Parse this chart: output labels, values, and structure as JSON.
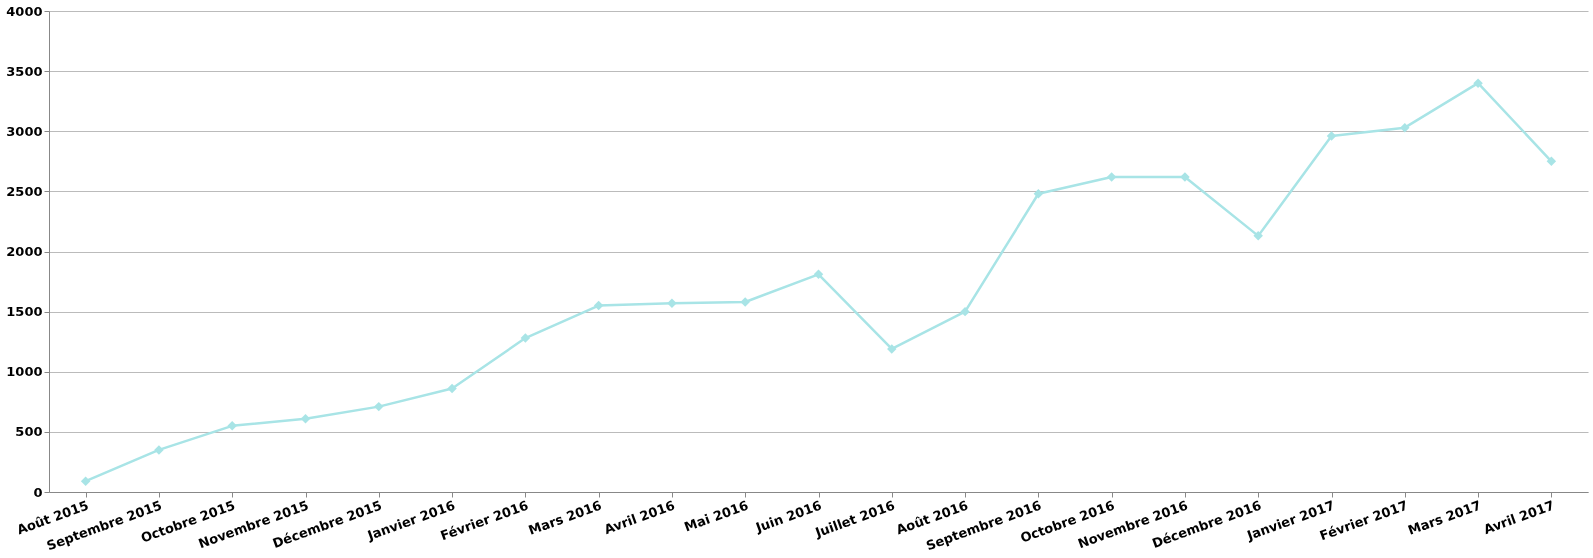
{
  "chart_data": {
    "type": "line",
    "categories": [
      "Août 2015",
      "Septembre 2015",
      "Octobre 2015",
      "Novembre 2015",
      "Décembre 2015",
      "Janvier 2016",
      "Février 2016",
      "Mars 2016",
      "Avril 2016",
      "Mai 2016",
      "Juin 2016",
      "Juillet 2016",
      "Août 2016",
      "Septembre 2016",
      "Octobre 2016",
      "Novembre 2016",
      "Décembre 2016",
      "Janvier 2017",
      "Février 2017",
      "Mars 2017",
      "Avril 2017"
    ],
    "series": [
      {
        "color": "#a8e4e6",
        "values": [
          90,
          350,
          550,
          610,
          710,
          860,
          1280,
          1550,
          1570,
          1580,
          1810,
          1190,
          1500,
          2480,
          2620,
          2620,
          2130,
          2960,
          3030,
          3400,
          2750
        ]
      }
    ],
    "ylim": [
      0,
      4000
    ],
    "yticks": [
      0,
      500,
      1000,
      1500,
      2000,
      2500,
      3000,
      3500,
      4000
    ],
    "grid": "y",
    "marker": "diamond",
    "line_style": "solid",
    "legend": false
  }
}
